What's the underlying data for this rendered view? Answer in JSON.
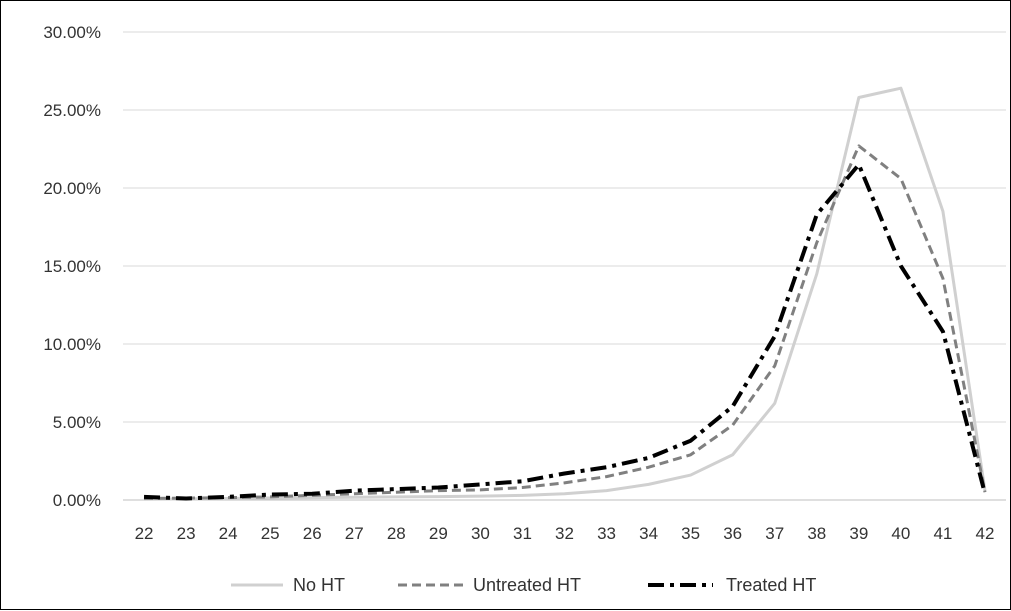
{
  "chart_data": {
    "type": "line",
    "x": [
      22,
      23,
      24,
      25,
      26,
      27,
      28,
      29,
      30,
      31,
      32,
      33,
      34,
      35,
      36,
      37,
      38,
      39,
      40,
      41,
      42
    ],
    "ylim": [
      0,
      30
    ],
    "yticks": [
      0,
      5,
      10,
      15,
      20,
      25,
      30
    ],
    "ytick_labels": [
      "0.00%",
      "5.00%",
      "10.00%",
      "15.00%",
      "20.00%",
      "25.00%",
      "30.00%"
    ],
    "xtick_labels": [
      "22",
      "23",
      "24",
      "25",
      "26",
      "27",
      "28",
      "29",
      "30",
      "31",
      "32",
      "33",
      "34",
      "35",
      "36",
      "37",
      "38",
      "39",
      "40",
      "41",
      "42"
    ],
    "grid": "horizontal",
    "legend_position": "bottom",
    "series": [
      {
        "name": "No HT",
        "color": "#d0d0d0",
        "style": "solid",
        "values": [
          0.05,
          0.07,
          0.1,
          0.13,
          0.15,
          0.18,
          0.2,
          0.22,
          0.25,
          0.3,
          0.4,
          0.6,
          1.0,
          1.6,
          2.9,
          6.2,
          14.5,
          25.8,
          26.4,
          18.5,
          0.6
        ]
      },
      {
        "name": "Untreated HT",
        "color": "#808080",
        "style": "dashed",
        "values": [
          0.1,
          0.12,
          0.15,
          0.2,
          0.3,
          0.4,
          0.5,
          0.6,
          0.65,
          0.8,
          1.1,
          1.5,
          2.1,
          2.9,
          4.8,
          8.6,
          16.5,
          22.7,
          20.6,
          14.2,
          0.5
        ]
      },
      {
        "name": "Treated HT",
        "color": "#000000",
        "style": "dashdot",
        "values": [
          0.2,
          0.1,
          0.2,
          0.35,
          0.4,
          0.6,
          0.7,
          0.8,
          1.0,
          1.2,
          1.7,
          2.1,
          2.7,
          3.8,
          6.0,
          10.5,
          18.3,
          21.5,
          15.0,
          10.8,
          0.4
        ]
      }
    ]
  }
}
